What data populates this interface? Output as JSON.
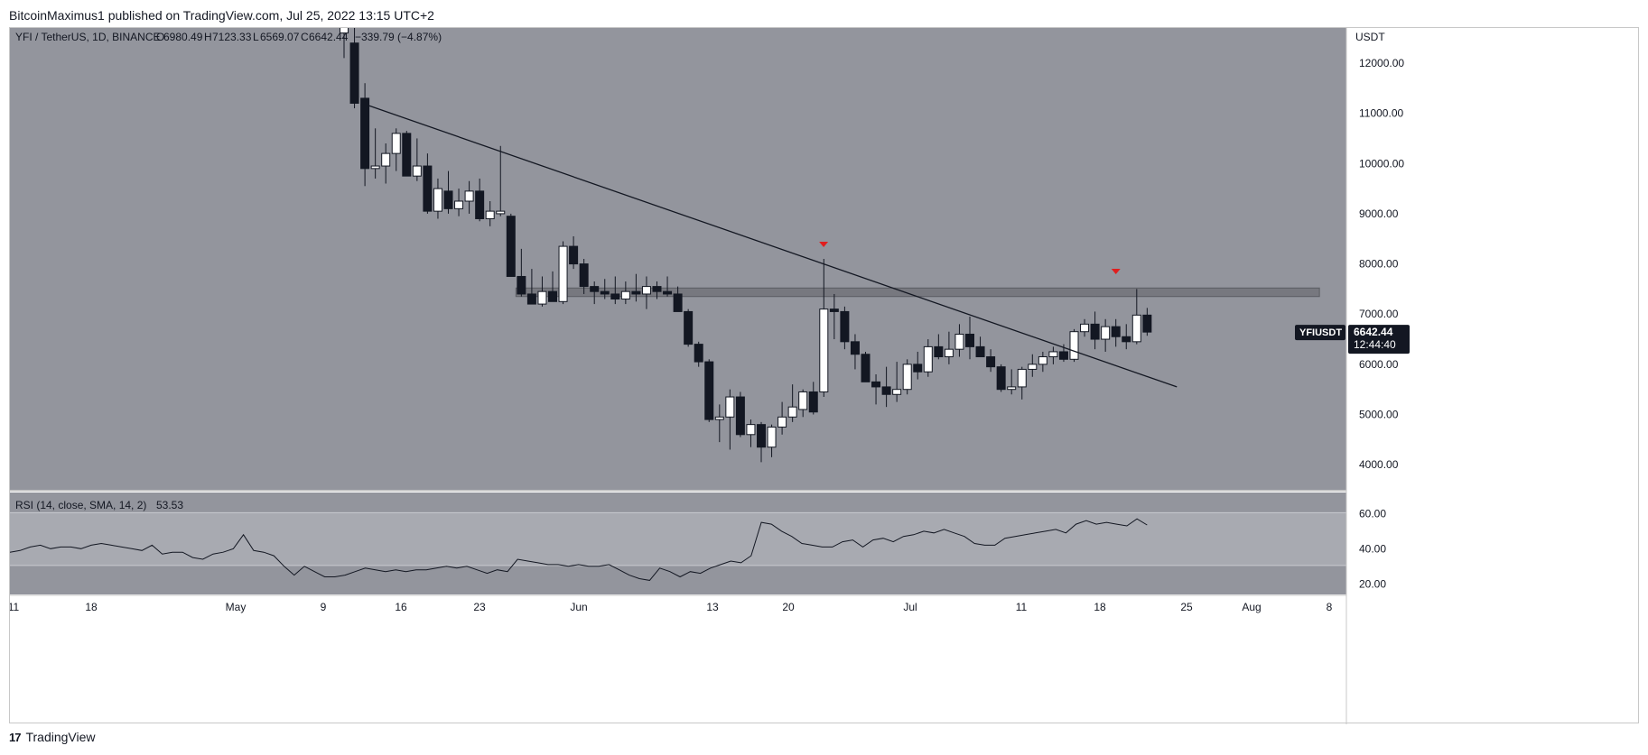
{
  "header": {
    "publisher_text": "BitcoinMaximus1 published on TradingView.com, Jul 25, 2022 13:15 UTC+2"
  },
  "footer": {
    "brand": "TradingView",
    "logo_glyph": "17"
  },
  "legend": {
    "symbol_line": "YFI / TetherUS, 1D, BINANCE",
    "open_label": "O",
    "open": "6980.49",
    "high_label": "H",
    "high": "7123.33",
    "low_label": "L",
    "low": "6569.07",
    "close_label": "C",
    "close": "6642.44",
    "change": "−339.79 (−4.87%)"
  },
  "price_axis": {
    "currency": "USDT",
    "ticks": [
      "12000.00",
      "11000.00",
      "10000.00",
      "9000.00",
      "8000.00",
      "7000.00",
      "6000.00",
      "5000.00",
      "4000.00"
    ]
  },
  "price_badge": {
    "symbol": "YFIUSDT",
    "price": "6642.44",
    "countdown": "12:44:40"
  },
  "rsi": {
    "label": "RSI (14, close, SMA, 14, 2)",
    "value": "53.53",
    "ticks": [
      "60.00",
      "40.00",
      "20.00"
    ]
  },
  "time_axis": {
    "labels": [
      "11",
      "18",
      "May",
      "9",
      "16",
      "23",
      "Jun",
      "13",
      "20",
      "Jul",
      "11",
      "18",
      "25",
      "Aug",
      "8"
    ]
  },
  "colors": {
    "pane_bg": "#93959d",
    "rsi_band": "#a8aab1",
    "bull": "#ffffff",
    "bear": "#131722",
    "marker": "#e01e1e"
  },
  "chart_data": {
    "type": "candlestick",
    "title": "YFI / TetherUS, 1D, BINANCE",
    "ylabel": "USDT",
    "ylim": [
      3500,
      12700
    ],
    "resistance_zone": [
      7350,
      7520
    ],
    "trendline": {
      "start": {
        "bar": 0,
        "price": 11150
      },
      "end": {
        "bar": 75,
        "price": 5550
      }
    },
    "markers": [
      {
        "bar": 42,
        "label": "red down arrow"
      },
      {
        "bar": 74,
        "label": "red down arrow"
      }
    ],
    "candles": [
      {
        "o": 12600,
        "h": 12900,
        "l": 12100,
        "c": 12800
      },
      {
        "o": 12400,
        "h": 12700,
        "l": 11100,
        "c": 11200
      },
      {
        "o": 11300,
        "h": 11600,
        "l": 9550,
        "c": 9900
      },
      {
        "o": 9900,
        "h": 10700,
        "l": 9700,
        "c": 9950
      },
      {
        "o": 9950,
        "h": 10400,
        "l": 9600,
        "c": 10200
      },
      {
        "o": 10200,
        "h": 10700,
        "l": 9850,
        "c": 10600
      },
      {
        "o": 10600,
        "h": 10650,
        "l": 9750,
        "c": 9750
      },
      {
        "o": 9750,
        "h": 10500,
        "l": 9650,
        "c": 9950
      },
      {
        "o": 9950,
        "h": 10200,
        "l": 9000,
        "c": 9050
      },
      {
        "o": 9050,
        "h": 9700,
        "l": 8900,
        "c": 9500
      },
      {
        "o": 9450,
        "h": 9850,
        "l": 9000,
        "c": 9100
      },
      {
        "o": 9100,
        "h": 9500,
        "l": 8950,
        "c": 9250
      },
      {
        "o": 9250,
        "h": 9650,
        "l": 9000,
        "c": 9450
      },
      {
        "o": 9450,
        "h": 9700,
        "l": 8850,
        "c": 8900
      },
      {
        "o": 8900,
        "h": 9250,
        "l": 8750,
        "c": 9050
      },
      {
        "o": 9000,
        "h": 10350,
        "l": 8950,
        "c": 9050
      },
      {
        "o": 8950,
        "h": 9000,
        "l": 7750,
        "c": 7750
      },
      {
        "o": 7750,
        "h": 8300,
        "l": 7350,
        "c": 7400
      },
      {
        "o": 7400,
        "h": 7900,
        "l": 7200,
        "c": 7200
      },
      {
        "o": 7200,
        "h": 7750,
        "l": 7150,
        "c": 7450
      },
      {
        "o": 7450,
        "h": 7850,
        "l": 7300,
        "c": 7250
      },
      {
        "o": 7250,
        "h": 8450,
        "l": 7200,
        "c": 8350
      },
      {
        "o": 8350,
        "h": 8550,
        "l": 7900,
        "c": 8000
      },
      {
        "o": 8000,
        "h": 8100,
        "l": 7400,
        "c": 7550
      },
      {
        "o": 7550,
        "h": 7650,
        "l": 7200,
        "c": 7450
      },
      {
        "o": 7450,
        "h": 7700,
        "l": 7300,
        "c": 7400
      },
      {
        "o": 7400,
        "h": 7750,
        "l": 7200,
        "c": 7300
      },
      {
        "o": 7300,
        "h": 7650,
        "l": 7200,
        "c": 7450
      },
      {
        "o": 7450,
        "h": 7800,
        "l": 7250,
        "c": 7400
      },
      {
        "o": 7400,
        "h": 7750,
        "l": 7100,
        "c": 7550
      },
      {
        "o": 7550,
        "h": 7650,
        "l": 7300,
        "c": 7450
      },
      {
        "o": 7450,
        "h": 7750,
        "l": 7350,
        "c": 7400
      },
      {
        "o": 7400,
        "h": 7550,
        "l": 7050,
        "c": 7050
      },
      {
        "o": 7050,
        "h": 7100,
        "l": 6350,
        "c": 6400
      },
      {
        "o": 6400,
        "h": 6450,
        "l": 5950,
        "c": 6050
      },
      {
        "o": 6050,
        "h": 6100,
        "l": 4850,
        "c": 4900
      },
      {
        "o": 4900,
        "h": 5200,
        "l": 4450,
        "c": 4950
      },
      {
        "o": 4950,
        "h": 5500,
        "l": 4300,
        "c": 5350
      },
      {
        "o": 5350,
        "h": 5450,
        "l": 4550,
        "c": 4600
      },
      {
        "o": 4600,
        "h": 4900,
        "l": 4350,
        "c": 4800
      },
      {
        "o": 4800,
        "h": 4850,
        "l": 4050,
        "c": 4350
      },
      {
        "o": 4350,
        "h": 4800,
        "l": 4150,
        "c": 4750
      },
      {
        "o": 4750,
        "h": 5250,
        "l": 4600,
        "c": 4950
      },
      {
        "o": 4950,
        "h": 5600,
        "l": 4850,
        "c": 5150
      },
      {
        "o": 5100,
        "h": 5500,
        "l": 4950,
        "c": 5450
      },
      {
        "o": 5450,
        "h": 5650,
        "l": 5000,
        "c": 5050
      },
      {
        "o": 5450,
        "h": 8100,
        "l": 5350,
        "c": 7100
      },
      {
        "o": 7100,
        "h": 7400,
        "l": 6500,
        "c": 7050
      },
      {
        "o": 7050,
        "h": 7150,
        "l": 6300,
        "c": 6450
      },
      {
        "o": 6450,
        "h": 6600,
        "l": 5900,
        "c": 6200
      },
      {
        "o": 6200,
        "h": 6250,
        "l": 5650,
        "c": 5650
      },
      {
        "o": 5650,
        "h": 5800,
        "l": 5200,
        "c": 5550
      },
      {
        "o": 5550,
        "h": 5950,
        "l": 5150,
        "c": 5400
      },
      {
        "o": 5400,
        "h": 6050,
        "l": 5250,
        "c": 5500
      },
      {
        "o": 5500,
        "h": 6100,
        "l": 5400,
        "c": 6000
      },
      {
        "o": 6000,
        "h": 6250,
        "l": 5700,
        "c": 5850
      },
      {
        "o": 5850,
        "h": 6500,
        "l": 5750,
        "c": 6350
      },
      {
        "o": 6350,
        "h": 6600,
        "l": 6100,
        "c": 6150
      },
      {
        "o": 6150,
        "h": 6650,
        "l": 6000,
        "c": 6300
      },
      {
        "o": 6300,
        "h": 6800,
        "l": 6150,
        "c": 6600
      },
      {
        "o": 6600,
        "h": 6950,
        "l": 6100,
        "c": 6350
      },
      {
        "o": 6350,
        "h": 6550,
        "l": 6150,
        "c": 6150
      },
      {
        "o": 6150,
        "h": 6300,
        "l": 5850,
        "c": 5950
      },
      {
        "o": 5950,
        "h": 6000,
        "l": 5450,
        "c": 5500
      },
      {
        "o": 5500,
        "h": 5900,
        "l": 5400,
        "c": 5550
      },
      {
        "o": 5550,
        "h": 5950,
        "l": 5300,
        "c": 5900
      },
      {
        "o": 5900,
        "h": 6200,
        "l": 5750,
        "c": 6000
      },
      {
        "o": 6000,
        "h": 6250,
        "l": 5850,
        "c": 6150
      },
      {
        "o": 6150,
        "h": 6350,
        "l": 6000,
        "c": 6250
      },
      {
        "o": 6250,
        "h": 6400,
        "l": 6050,
        "c": 6100
      },
      {
        "o": 6100,
        "h": 6700,
        "l": 6050,
        "c": 6650
      },
      {
        "o": 6650,
        "h": 6900,
        "l": 6550,
        "c": 6800
      },
      {
        "o": 6800,
        "h": 7050,
        "l": 6300,
        "c": 6500
      },
      {
        "o": 6500,
        "h": 6900,
        "l": 6250,
        "c": 6750
      },
      {
        "o": 6750,
        "h": 6900,
        "l": 6350,
        "c": 6550
      },
      {
        "o": 6550,
        "h": 6800,
        "l": 6300,
        "c": 6450
      },
      {
        "o": 6450,
        "h": 7500,
        "l": 6400,
        "c": 6980
      },
      {
        "o": 6980,
        "h": 7123,
        "l": 6569,
        "c": 6642
      }
    ],
    "rsi": [
      38,
      39,
      41,
      42,
      40,
      41,
      41,
      40,
      42,
      43,
      42,
      41,
      40,
      39,
      42,
      37,
      38,
      38,
      35,
      34,
      37,
      38,
      40,
      48,
      39,
      38,
      36,
      30,
      25,
      30,
      27,
      24,
      24,
      25,
      27,
      29,
      28,
      27,
      28,
      27,
      28,
      28,
      29,
      30,
      29,
      30,
      28,
      26,
      28,
      27,
      34,
      33,
      32,
      31,
      31,
      30,
      31,
      30,
      30,
      31,
      28,
      25,
      23,
      22,
      29,
      27,
      24,
      27,
      26,
      29,
      31,
      33,
      32,
      36,
      55,
      54,
      50,
      47,
      43,
      42,
      41,
      41,
      44,
      45,
      41,
      45,
      46,
      44,
      47,
      48,
      50,
      49,
      51,
      49,
      47,
      43,
      42,
      42,
      46,
      47,
      48,
      49,
      50,
      51,
      49,
      54,
      56,
      54,
      55,
      54,
      53,
      57,
      53.53
    ]
  }
}
